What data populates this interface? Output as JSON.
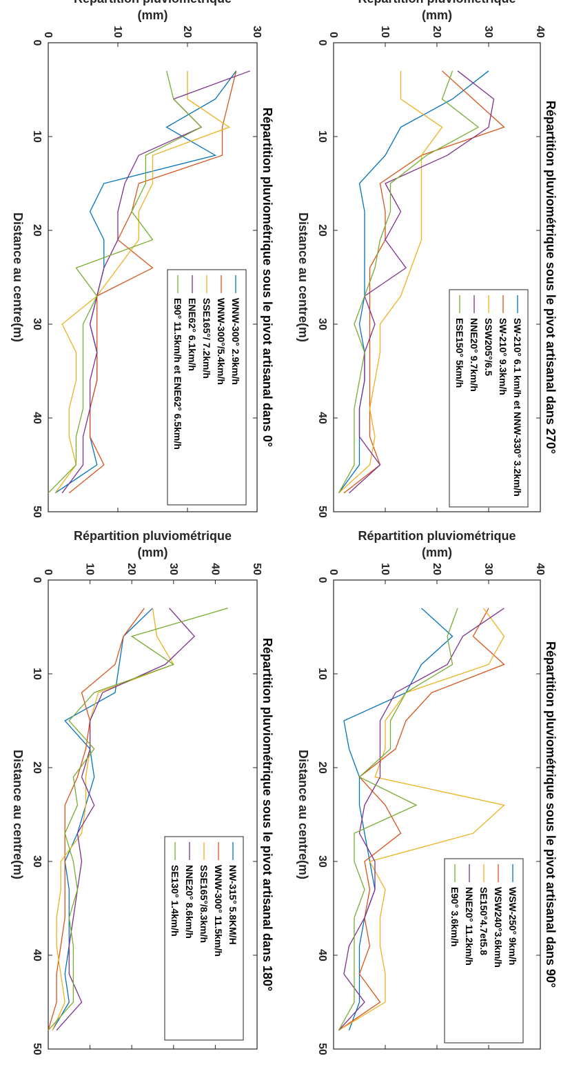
{
  "chart_data": [
    {
      "type": "line",
      "title": "Répartition pluviométrique sous le pivot artisanal dans 270°",
      "xlabel": "Distance au centre(m)",
      "ylabel": "Répartition pluviométrique (mm)",
      "ylabel_lines": [
        "Répartition pluviométrique",
        "(mm)"
      ],
      "xlim": [
        0,
        50
      ],
      "ylim": [
        0,
        40
      ],
      "xticks": [
        "0",
        "10",
        "20",
        "30",
        "40",
        "50"
      ],
      "yticks": [
        "0",
        "10",
        "20",
        "30",
        "40"
      ],
      "legend_position": "top-right",
      "x": [
        3,
        6,
        9,
        12,
        15,
        18,
        21,
        24,
        27,
        30,
        33,
        36,
        39,
        42,
        45,
        48
      ],
      "series": [
        {
          "name": "SW-210° 6.1 km/h et NNW-330° 3.2km/h",
          "color": "#0072BD",
          "values": [
            30,
            23,
            13,
            10,
            5,
            6,
            6,
            6,
            6,
            5,
            6,
            6,
            5,
            5,
            5,
            1
          ]
        },
        {
          "name": "SW-210° 9.3km/h",
          "color": "#D95319",
          "values": [
            21,
            27,
            33,
            17,
            9,
            10,
            10,
            7,
            7,
            7,
            7,
            7,
            7,
            7,
            9,
            2
          ]
        },
        {
          "name": "SSW205°/6.5",
          "color": "#EDB120",
          "values": [
            13,
            13,
            21,
            17,
            17,
            17,
            17,
            15,
            13,
            9,
            9,
            8,
            7,
            8,
            7,
            1
          ]
        },
        {
          "name": "NNE20° 9.7km/h",
          "color": "#7E2F8E",
          "values": [
            24,
            31,
            30,
            22,
            10,
            13,
            10,
            14,
            6,
            8,
            6,
            6,
            5,
            5,
            9,
            3
          ]
        },
        {
          "name": "ESE150° 5km/h",
          "color": "#77AC30",
          "values": [
            23,
            21,
            28,
            18,
            11,
            11,
            9,
            8,
            6,
            4,
            6,
            5,
            4,
            4,
            4,
            1
          ]
        }
      ]
    },
    {
      "type": "line",
      "title": "Répartition pluviométrique sous le pivot artisanal dans 90°",
      "xlabel": "Distance au centre(m)",
      "ylabel": "Répartition pluviométrique (mm)",
      "ylabel_lines": [
        "Répartition pluviométrique",
        "(mm)"
      ],
      "xlim": [
        0,
        50
      ],
      "ylim": [
        0,
        40
      ],
      "xticks": [
        "0",
        "10",
        "20",
        "30",
        "40",
        "50"
      ],
      "yticks": [
        "0",
        "10",
        "20",
        "30",
        "40"
      ],
      "legend_position": "top-right",
      "x": [
        3,
        6,
        9,
        12,
        15,
        18,
        21,
        24,
        27,
        30,
        33,
        36,
        39,
        42,
        45,
        48
      ],
      "series": [
        {
          "name": "WSW-250° 9km/h",
          "color": "#0072BD",
          "values": [
            17,
            23,
            17,
            14,
            2,
            3,
            5,
            5,
            6,
            7,
            8,
            6,
            5,
            5,
            5,
            3
          ]
        },
        {
          "name": "WSW240°3.6km/h",
          "color": "#D95319",
          "values": [
            30,
            27,
            33,
            19,
            14,
            12,
            5,
            10,
            13,
            6,
            7,
            6,
            7,
            5,
            9,
            1
          ]
        },
        {
          "name": "SE150°4.7et5.8",
          "color": "#EDB120",
          "values": [
            29,
            33,
            30,
            14,
            10,
            10,
            8,
            33,
            27,
            7,
            10,
            9,
            9,
            10,
            10,
            1
          ]
        },
        {
          "name": "NNE20° 11.2km/h",
          "color": "#7E2F8E",
          "values": [
            33,
            25,
            22,
            12,
            9,
            9,
            9,
            6,
            5,
            8,
            8,
            6,
            3,
            2,
            6,
            1
          ]
        },
        {
          "name": "E90° 3.6km/h",
          "color": "#77AC30",
          "values": [
            24,
            22,
            23,
            14,
            11,
            11,
            5,
            16,
            4,
            4,
            6,
            4,
            4,
            4,
            4,
            1
          ]
        }
      ]
    },
    {
      "type": "line",
      "title": "Répartition pluviométrique sous le pivot artisanal dans 0°",
      "xlabel": "Distance au centre(m)",
      "ylabel": "Répartition pluviométrique (mm)",
      "ylabel_lines": [
        "Répartition pluviométrique",
        "(mm)"
      ],
      "xlim": [
        0,
        50
      ],
      "ylim": [
        0,
        30
      ],
      "xticks": [
        "0",
        "10",
        "20",
        "30",
        "40",
        "50"
      ],
      "yticks": [
        "0",
        "10",
        "20",
        "30"
      ],
      "legend_position": "top-right",
      "x": [
        3,
        6,
        9,
        12,
        15,
        18,
        21,
        24,
        27,
        30,
        33,
        36,
        39,
        42,
        45,
        48
      ],
      "series": [
        {
          "name": "WNW-300° 2.9km/h",
          "color": "#0072BD",
          "values": [
            27,
            24,
            17,
            24,
            8,
            6,
            8,
            8,
            7,
            6,
            7,
            7,
            6,
            6,
            7,
            1
          ]
        },
        {
          "name": "WNW-300°/5.4km/h",
          "color": "#D95319",
          "values": [
            27,
            26,
            25,
            25,
            13,
            12,
            10,
            15,
            7,
            7,
            7,
            7,
            6,
            6,
            8,
            3
          ]
        },
        {
          "name": "SSE165°/ 7.2km/h",
          "color": "#EDB120",
          "values": [
            20,
            20,
            26,
            15,
            15,
            13,
            13,
            10,
            7,
            2,
            4,
            4,
            3,
            3,
            4,
            1
          ]
        },
        {
          "name": "ENE62° 6.1km/h",
          "color": "#7E2F8E",
          "values": [
            29,
            18,
            22,
            13,
            11,
            10,
            10,
            8,
            7,
            6,
            7,
            6,
            6,
            5,
            5,
            2
          ]
        },
        {
          "name": "E90° 11.5km/h et ENE62° 6.5km/h",
          "color": "#77AC30",
          "values": [
            17,
            18,
            22,
            14,
            14,
            12,
            15,
            4,
            7,
            5,
            5,
            5,
            5,
            4,
            4,
            0
          ]
        }
      ]
    },
    {
      "type": "line",
      "title": "Répartition pluviométrique sous le pivot artisanal dans 180°",
      "xlabel": "Distance au centre(m)",
      "ylabel": "Répartition pluviométrique (mm)",
      "ylabel_lines": [
        "Répartition pluviométrique",
        "(mm)"
      ],
      "xlim": [
        0,
        50
      ],
      "ylim": [
        0,
        50
      ],
      "xticks": [
        "0",
        "10",
        "20",
        "30",
        "40",
        "50"
      ],
      "yticks": [
        "0",
        "10",
        "20",
        "30",
        "40",
        "50"
      ],
      "legend_position": "top-right",
      "x": [
        3,
        6,
        9,
        12,
        15,
        18,
        21,
        24,
        27,
        30,
        33,
        36,
        39,
        42,
        45,
        48
      ],
      "series": [
        {
          "name": "NW-315° 5.8KM/H",
          "color": "#0072BD",
          "values": [
            25,
            18,
            17,
            16,
            4,
            10,
            11,
            9,
            7,
            4,
            5,
            5,
            5,
            4,
            5,
            1
          ]
        },
        {
          "name": "WNW-300° 11.5km/h",
          "color": "#D95319",
          "values": [
            23,
            18,
            16,
            8,
            10,
            9,
            7,
            4,
            4,
            4,
            4,
            4,
            3,
            2,
            2,
            0
          ]
        },
        {
          "name": "SSE165°/8.3km/h",
          "color": "#EDB120",
          "values": [
            25,
            26,
            30,
            12,
            10,
            10,
            9,
            9,
            8,
            3,
            3,
            2,
            2,
            3,
            4,
            1
          ]
        },
        {
          "name": "NNE20° 8.6km/h",
          "color": "#7E2F8E",
          "values": [
            29,
            35,
            28,
            13,
            10,
            10,
            8,
            11,
            7,
            8,
            7,
            6,
            5,
            5,
            8,
            2
          ]
        },
        {
          "name": "SE130° 1.4km/h",
          "color": "#77AC30",
          "values": [
            43,
            20,
            30,
            11,
            5,
            11,
            6,
            7,
            4,
            6,
            7,
            5,
            6,
            6,
            6,
            0
          ]
        }
      ]
    }
  ]
}
